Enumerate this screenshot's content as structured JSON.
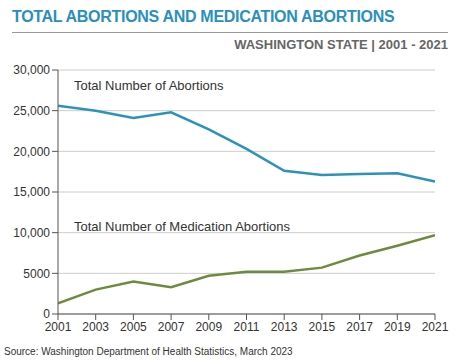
{
  "chart_data": {
    "type": "line",
    "title": "TOTAL ABORTIONS AND MEDICATION ABORTIONS",
    "subtitle": "WASHINGTON STATE | 2001 - 2021",
    "source": "Source: Washington Department of Health Statistics, March 2023",
    "x": [
      2001,
      2003,
      2005,
      2007,
      2009,
      2011,
      2013,
      2015,
      2017,
      2019,
      2021
    ],
    "series": [
      {
        "name": "Total Number of Abortions",
        "color": "#2b93bb",
        "values": [
          25600,
          25000,
          24100,
          24800,
          22700,
          20300,
          17600,
          17100,
          17200,
          17300,
          16300
        ]
      },
      {
        "name": "Total Number of Medication Abortions",
        "color": "#6e8b3d",
        "values": [
          1300,
          3000,
          4000,
          3300,
          4700,
          5200,
          5200,
          5700,
          7200,
          8400,
          9700
        ]
      }
    ],
    "xlim": [
      2001,
      2021
    ],
    "xticks": [
      2001,
      2003,
      2005,
      2007,
      2009,
      2011,
      2013,
      2015,
      2017,
      2019,
      2021
    ],
    "ylim": [
      0,
      30000
    ],
    "yticks": [
      0,
      5000,
      {
        "value": 10000,
        "label": "10,000"
      },
      {
        "value": 15000,
        "label": "15,000"
      },
      {
        "value": 20000,
        "label": "20,000"
      },
      {
        "value": 25000,
        "label": "25,000"
      },
      {
        "value": 30000,
        "label": "30,000"
      }
    ],
    "grid": true
  }
}
